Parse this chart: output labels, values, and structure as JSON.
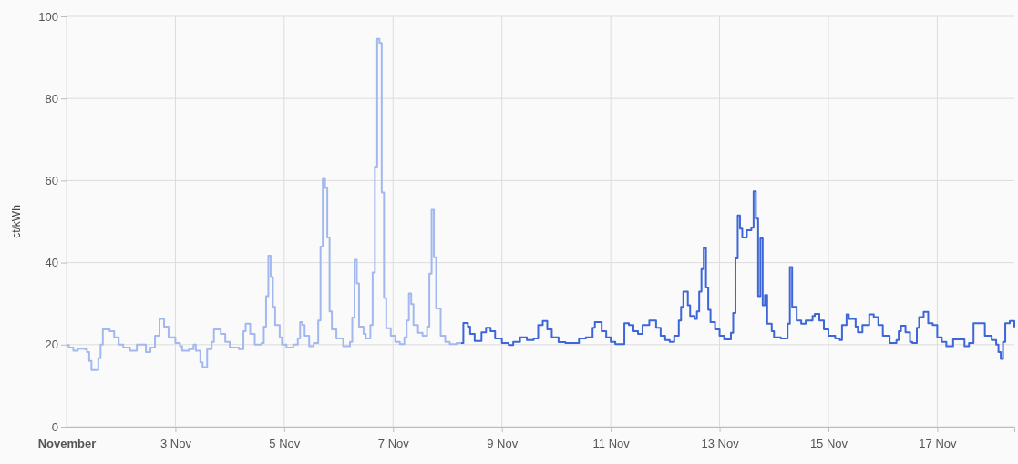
{
  "chart_data": {
    "type": "step",
    "ylabel": "ct/kWh",
    "xlim": [
      "--11-01T00:00",
      "--11-18T10:00"
    ],
    "ylim": [
      0,
      100
    ],
    "yticks": [
      0,
      20,
      40,
      60,
      80,
      100
    ],
    "xticks": [
      {
        "value": "--11-01",
        "label": "November"
      },
      {
        "value": "--11-03",
        "label": "3 Nov"
      },
      {
        "value": "--11-05",
        "label": "5 Nov"
      },
      {
        "value": "--11-07",
        "label": "7 Nov"
      },
      {
        "value": "--11-09",
        "label": "9 Nov"
      },
      {
        "value": "--11-11",
        "label": "11 Nov"
      },
      {
        "value": "--11-13",
        "label": "13 Nov"
      },
      {
        "value": "--11-15",
        "label": "15 Nov"
      },
      {
        "value": "--11-17",
        "label": "17 Nov"
      }
    ],
    "grid": true,
    "line_style": "solid",
    "marker": "none",
    "series": [
      {
        "color": "#a3b8ee",
        "x": [
          "--11-01T00:00",
          "--11-01T01:00",
          "--11-01T03:00",
          "--11-01T05:00",
          "--11-01T08:00",
          "--11-01T09:00",
          "--11-01T10:00",
          "--11-01T11:00",
          "--11-01T14:00",
          "--11-01T15:00",
          "--11-01T16:00",
          "--11-01T19:00",
          "--11-01T21:00",
          "--11-01T23:00",
          "--11-02T01:00",
          "--11-02T04:00",
          "--11-02T07:00",
          "--11-02T10:00",
          "--11-02T11:00",
          "--11-02T13:00",
          "--11-02T15:00",
          "--11-02T17:00",
          "--11-02T19:00",
          "--11-02T21:00",
          "--11-03T00:00",
          "--11-03T02:00",
          "--11-03T03:00",
          "--11-03T06:00",
          "--11-03T08:00",
          "--11-03T09:00",
          "--11-03T11:00",
          "--11-03T12:00",
          "--11-03T14:00",
          "--11-03T16:00",
          "--11-03T17:00",
          "--11-03T20:00",
          "--11-03T22:00",
          "--11-04T00:00",
          "--11-04T04:00",
          "--11-04T06:00",
          "--11-04T07:00",
          "--11-04T09:00",
          "--11-04T11:00",
          "--11-04T14:00",
          "--11-04T15:00",
          "--11-04T16:00",
          "--11-04T17:00",
          "--11-04T18:00",
          "--11-04T19:00",
          "--11-04T20:00",
          "--11-04T22:00",
          "--11-04T23:00",
          "--11-05T01:00",
          "--11-05T02:00",
          "--11-05T04:00",
          "--11-05T06:00",
          "--11-05T07:00",
          "--11-05T08:00",
          "--11-05T09:00",
          "--11-05T11:00",
          "--11-05T13:00",
          "--11-05T15:00",
          "--11-05T16:00",
          "--11-05T17:00",
          "--11-05T18:00",
          "--11-05T19:00",
          "--11-05T20:00",
          "--11-05T21:00",
          "--11-05T23:00",
          "--11-06T02:00",
          "--11-06T05:00",
          "--11-06T06:00",
          "--11-06T07:00",
          "--11-06T08:00",
          "--11-06T09:00",
          "--11-06T11:00",
          "--11-06T12:00",
          "--11-06T14:00",
          "--11-06T15:00",
          "--11-06T16:00",
          "--11-06T17:00",
          "--11-06T18:00",
          "--11-06T19:00",
          "--11-06T20:00",
          "--11-06T21:00",
          "--11-06T23:00",
          "--11-07T01:00",
          "--11-07T03:00",
          "--11-07T05:00",
          "--11-07T06:00",
          "--11-07T07:00",
          "--11-07T08:00",
          "--11-07T09:00",
          "--11-07T11:00",
          "--11-07T13:00",
          "--11-07T15:00",
          "--11-07T16:00",
          "--11-07T17:00",
          "--11-07T18:00",
          "--11-07T19:00",
          "--11-07T21:00",
          "--11-07T23:00",
          "--11-08T01:00",
          "--11-08T04:00",
          "--11-08T06:00"
        ],
        "values": [
          19.9,
          19.3,
          18.5,
          19,
          18.9,
          18.2,
          16,
          13.8,
          16.7,
          20,
          23.7,
          23.3,
          21.8,
          20,
          19.3,
          18.5,
          20,
          20,
          18.2,
          19.3,
          22.2,
          26.3,
          24.4,
          21.8,
          20.4,
          19.6,
          18.5,
          18.9,
          20,
          18.5,
          15.7,
          14.5,
          18.9,
          20.7,
          23.7,
          22.6,
          20.7,
          19.3,
          18.9,
          23.3,
          25.1,
          22.6,
          20,
          20.4,
          24.4,
          31.8,
          41.7,
          36.5,
          29.2,
          24.8,
          21.8,
          20,
          19.3,
          19.3,
          20,
          21.5,
          25.5,
          24.8,
          22.2,
          19.6,
          20.4,
          25.9,
          43.9,
          60.4,
          58.2,
          46.1,
          28.1,
          23.7,
          21.5,
          19.6,
          20.7,
          26.6,
          40.7,
          34.9,
          24.4,
          22.6,
          21.5,
          24.8,
          37.6,
          63.2,
          94.5,
          93.5,
          57.1,
          31.4,
          24,
          22.2,
          20.7,
          20.1,
          21.8,
          25.9,
          32.5,
          29.9,
          24.8,
          22.9,
          22.2,
          24.4,
          37.3,
          52.9,
          41.3,
          28.8,
          22.2,
          20.7,
          20.1,
          20.4,
          20.4
        ]
      },
      {
        "color": "#3d66d9",
        "x": [
          "--11-08T06:00",
          "--11-08T07:00",
          "--11-08T09:00",
          "--11-08T10:00",
          "--11-08T12:00",
          "--11-08T15:00",
          "--11-08T17:00",
          "--11-08T19:00",
          "--11-08T21:00",
          "--11-09T00:00",
          "--11-09T03:00",
          "--11-09T05:00",
          "--11-09T08:00",
          "--11-09T11:00",
          "--11-09T14:00",
          "--11-09T16:00",
          "--11-09T18:00",
          "--11-09T20:00",
          "--11-09T22:00",
          "--11-10T01:00",
          "--11-10T04:00",
          "--11-10T07:00",
          "--11-10T10:00",
          "--11-10T13:00",
          "--11-10T16:00",
          "--11-10T17:00",
          "--11-10T20:00",
          "--11-10T22:00",
          "--11-11T00:00",
          "--11-11T02:00",
          "--11-11T05:00",
          "--11-11T06:00",
          "--11-11T08:00",
          "--11-11T10:00",
          "--11-11T12:00",
          "--11-11T14:00",
          "--11-11T17:00",
          "--11-11T20:00",
          "--11-11T22:00",
          "--11-12T00:00",
          "--11-12T02:00",
          "--11-12T04:00",
          "--11-12T06:00",
          "--11-12T07:00",
          "--11-12T08:00",
          "--11-12T10:00",
          "--11-12T11:00",
          "--11-12T13:00",
          "--11-12T14:00",
          "--11-12T15:00",
          "--11-12T16:00",
          "--11-12T17:00",
          "--11-12T18:00",
          "--11-12T19:00",
          "--11-12T20:00",
          "--11-12T22:00",
          "--11-13T00:00",
          "--11-13T02:00",
          "--11-13T05:00",
          "--11-13T06:00",
          "--11-13T07:00",
          "--11-13T08:00",
          "--11-13T09:00",
          "--11-13T10:00",
          "--11-13T12:00",
          "--11-13T14:00",
          "--11-13T15:00",
          "--11-13T16:00",
          "--11-13T17:00",
          "--11-13T18:00",
          "--11-13T19:00",
          "--11-13T20:00",
          "--11-13T21:00",
          "--11-13T23:00",
          "--11-14T00:00",
          "--11-14T03:00",
          "--11-14T06:00",
          "--11-14T07:00",
          "--11-14T08:00",
          "--11-14T10:00",
          "--11-14T12:00",
          "--11-14T14:00",
          "--11-14T17:00",
          "--11-14T18:00",
          "--11-14T20:00",
          "--11-14T22:00",
          "--11-15T00:00",
          "--11-15T03:00",
          "--11-15T05:00",
          "--11-15T06:00",
          "--11-15T08:00",
          "--11-15T09:00",
          "--11-15T12:00",
          "--11-15T13:00",
          "--11-15T15:00",
          "--11-15T18:00",
          "--11-15T20:00",
          "--11-15T22:00",
          "--11-16T00:00",
          "--11-16T03:00",
          "--11-16T06:00",
          "--11-16T07:00",
          "--11-16T08:00",
          "--11-16T10:00",
          "--11-16T12:00",
          "--11-16T13:00",
          "--11-16T15:00",
          "--11-16T16:00",
          "--11-16T18:00",
          "--11-16T20:00",
          "--11-16T22:00",
          "--11-17T00:00",
          "--11-17T02:00",
          "--11-17T04:00",
          "--11-17T07:00",
          "--11-17T10:00",
          "--11-17T12:00",
          "--11-17T14:00",
          "--11-17T16:00",
          "--11-17T20:00",
          "--11-17T21:00",
          "--11-18T00:00",
          "--11-18T02:00",
          "--11-18T03:00",
          "--11-18T04:00",
          "--11-18T05:00",
          "--11-18T06:00",
          "--11-18T08:00",
          "--11-18T10:00"
        ],
        "values": [
          20.4,
          25.3,
          24.4,
          22.6,
          20.9,
          23,
          24.1,
          23.3,
          21.5,
          20.4,
          19.9,
          20.7,
          21.8,
          21.1,
          21.5,
          24.8,
          25.8,
          23.7,
          21.8,
          20.6,
          20.4,
          20.4,
          21.5,
          21.8,
          24.1,
          25.5,
          23.3,
          21.8,
          20.7,
          20.1,
          20.1,
          25.2,
          24.8,
          23.3,
          22.6,
          24.8,
          25.9,
          24.1,
          22.2,
          21.1,
          20.7,
          22.2,
          25.9,
          29.2,
          32.9,
          29.6,
          27,
          26.3,
          28.1,
          32.9,
          38.4,
          43.5,
          33.9,
          28.5,
          25.5,
          23.7,
          22.2,
          21.3,
          22.9,
          27.7,
          41,
          51.5,
          48.3,
          46.1,
          47.9,
          48.5,
          57.4,
          50.7,
          31.8,
          45.9,
          29.6,
          32.1,
          25.1,
          23.3,
          21.8,
          21.5,
          25.1,
          38.9,
          29.2,
          25.9,
          25.1,
          25.9,
          27,
          27.5,
          25.9,
          23.7,
          22.2,
          21.5,
          21.1,
          24.8,
          27.4,
          26.3,
          24.4,
          23,
          24.8,
          27.4,
          26.7,
          24.8,
          22.2,
          20.4,
          21.1,
          23.3,
          24.6,
          23,
          20.7,
          20.4,
          24.1,
          26.7,
          28,
          25.2,
          24.8,
          21.8,
          20.7,
          19.6,
          21.3,
          21.3,
          19.6,
          20.4,
          25.2,
          25.2,
          22.2,
          21.1,
          20,
          18.2,
          16.5,
          20.7,
          25.2,
          25.8,
          24.2
        ]
      }
    ]
  }
}
